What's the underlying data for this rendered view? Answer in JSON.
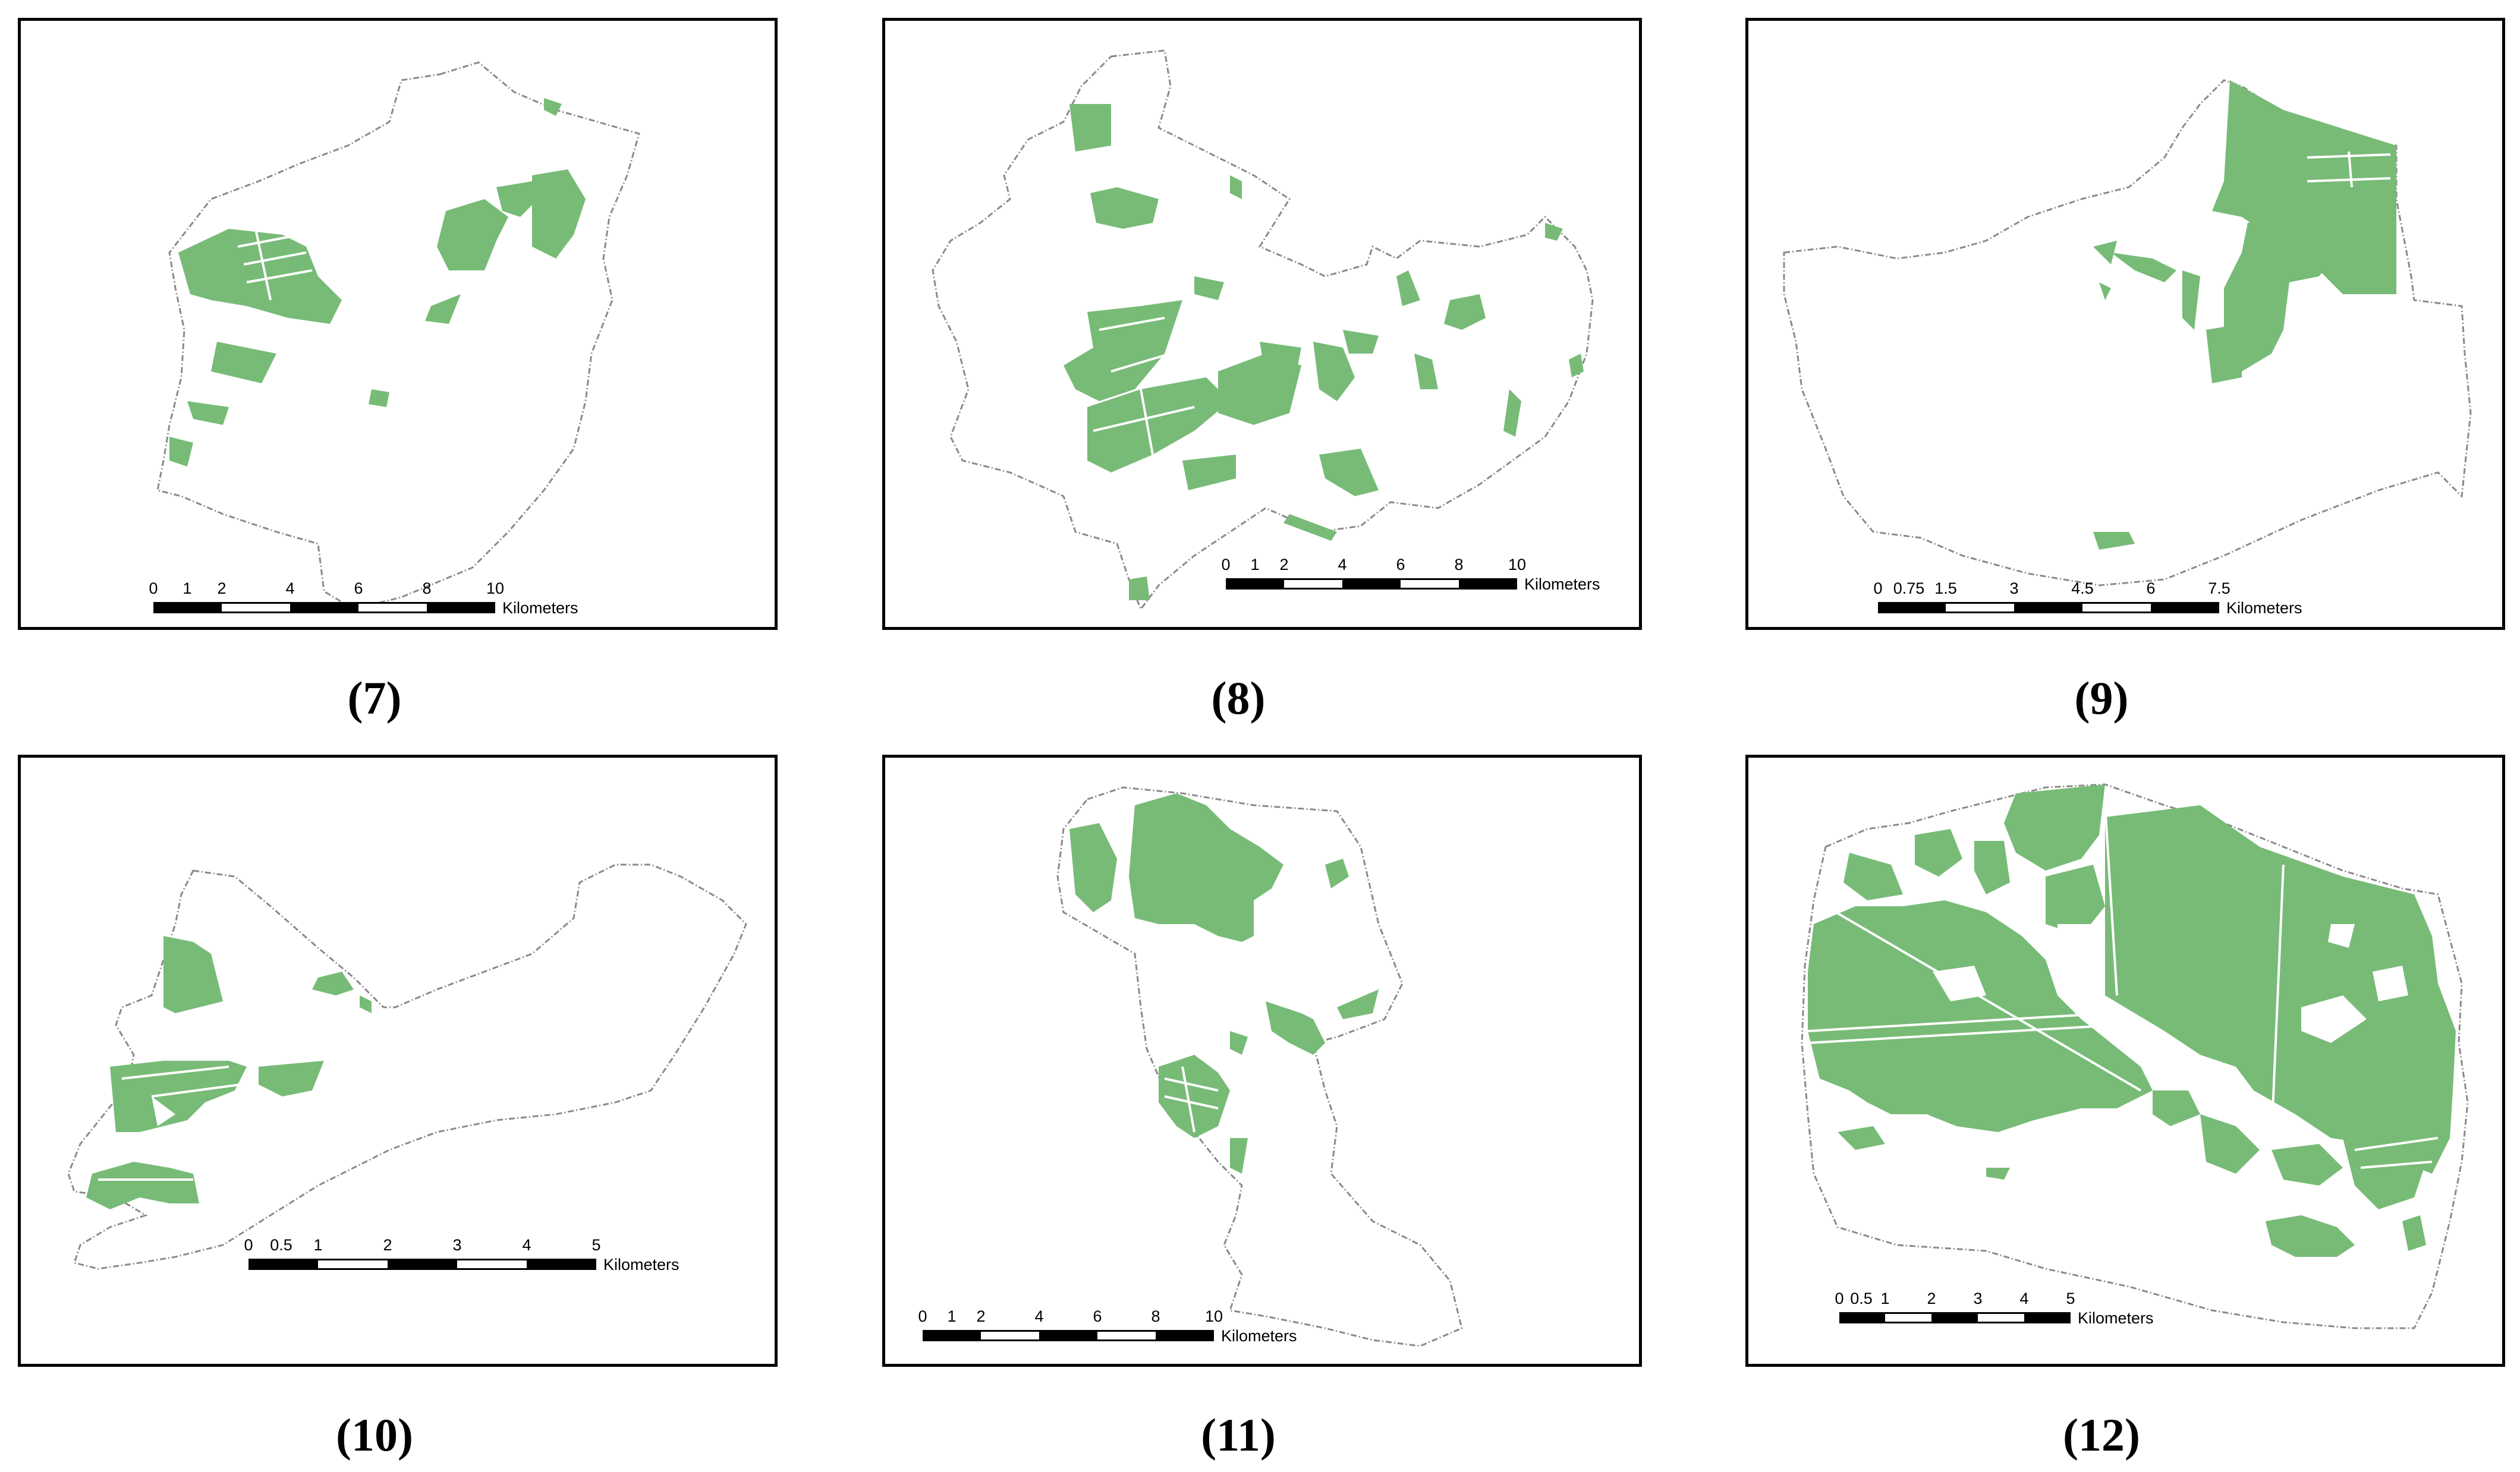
{
  "figure": {
    "forest_color": "#77bb77",
    "boundary_color": "#8a8a8a",
    "panels": [
      {
        "id": "p7",
        "caption": "(7)",
        "scale": {
          "labels": [
            "0",
            "1",
            "2",
            "4",
            "6",
            "8",
            "10"
          ],
          "unit": "Kilometers"
        }
      },
      {
        "id": "p8",
        "caption": "(8)",
        "scale": {
          "labels": [
            "0",
            "1",
            "2",
            "4",
            "6",
            "8",
            "10"
          ],
          "unit": "Kilometers"
        }
      },
      {
        "id": "p9",
        "caption": "(9)",
        "scale": {
          "labels": [
            "0",
            "0.75",
            "1.5",
            "3",
            "4.5",
            "6",
            "7.5"
          ],
          "unit": "Kilometers"
        }
      },
      {
        "id": "p10",
        "caption": "(10)",
        "scale": {
          "labels": [
            "0",
            "0.5",
            "1",
            "2",
            "3",
            "4",
            "5"
          ],
          "unit": "Kilometers"
        }
      },
      {
        "id": "p11",
        "caption": "(11)",
        "scale": {
          "labels": [
            "0",
            "1",
            "2",
            "4",
            "6",
            "8",
            "10"
          ],
          "unit": "Kilometers"
        }
      },
      {
        "id": "p12",
        "caption": "(12)",
        "scale": {
          "labels": [
            "0",
            "0.5",
            "1",
            "2",
            "3",
            "4",
            "5"
          ],
          "unit": "Kilometers"
        }
      }
    ]
  }
}
